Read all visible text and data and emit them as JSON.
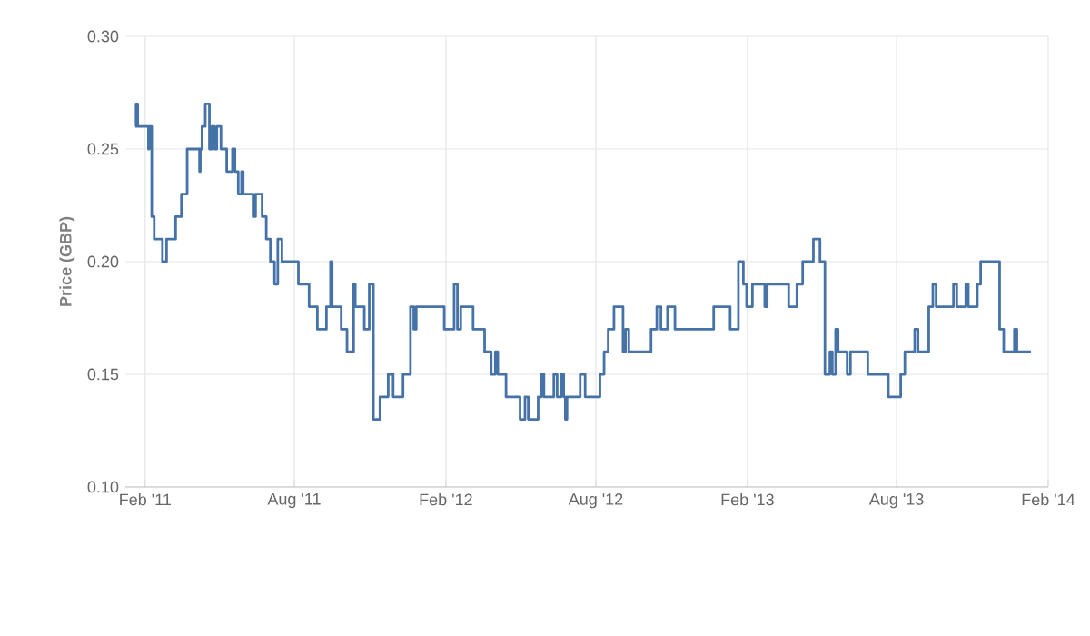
{
  "chart_data": {
    "type": "step",
    "ylabel": "Price (GBP)",
    "color": "#4572a7",
    "grid": true,
    "xlim": [
      "2011-01-08",
      "2014-02-01"
    ],
    "ylim": [
      0.1,
      0.3
    ],
    "xticks": [
      {
        "value": "2011-02-01",
        "label": "Feb '11"
      },
      {
        "value": "2011-08-01",
        "label": "Aug '11"
      },
      {
        "value": "2012-02-01",
        "label": "Feb '12"
      },
      {
        "value": "2012-08-01",
        "label": "Aug '12"
      },
      {
        "value": "2013-02-01",
        "label": "Feb '13"
      },
      {
        "value": "2013-08-01",
        "label": "Aug '13"
      },
      {
        "value": "2014-02-01",
        "label": "Feb '14"
      }
    ],
    "yticks": [
      {
        "value": 0.1,
        "label": "0.10"
      },
      {
        "value": 0.15,
        "label": "0.15"
      },
      {
        "value": 0.2,
        "label": "0.20"
      },
      {
        "value": 0.25,
        "label": "0.25"
      },
      {
        "value": 0.3,
        "label": "0.30"
      }
    ],
    "x": [
      "2011-01-20",
      "2011-01-21",
      "2011-01-23",
      "2011-02-05",
      "2011-02-06",
      "2011-02-09",
      "2011-02-12",
      "2011-02-22",
      "2011-02-27",
      "2011-03-10",
      "2011-03-17",
      "2011-03-24",
      "2011-04-08",
      "2011-04-09",
      "2011-04-11",
      "2011-04-15",
      "2011-04-20",
      "2011-04-23",
      "2011-04-26",
      "2011-04-29",
      "2011-05-04",
      "2011-05-11",
      "2011-05-18",
      "2011-05-21",
      "2011-05-25",
      "2011-05-29",
      "2011-05-31",
      "2011-06-12",
      "2011-06-15",
      "2011-06-23",
      "2011-06-28",
      "2011-07-03",
      "2011-07-08",
      "2011-07-12",
      "2011-07-17",
      "2011-08-06",
      "2011-08-19",
      "2011-08-29",
      "2011-09-09",
      "2011-09-14",
      "2011-09-16",
      "2011-09-27",
      "2011-10-04",
      "2011-10-12",
      "2011-10-14",
      "2011-10-25",
      "2011-10-31",
      "2011-11-05",
      "2011-11-13",
      "2011-11-23",
      "2011-11-29",
      "2011-12-11",
      "2011-12-20",
      "2011-12-24",
      "2011-12-27",
      "2012-01-30",
      "2012-02-11",
      "2012-02-15",
      "2012-02-19",
      "2012-03-05",
      "2012-03-19",
      "2012-03-27",
      "2012-04-01",
      "2012-04-04",
      "2012-04-14",
      "2012-05-01",
      "2012-05-07",
      "2012-05-11",
      "2012-05-23",
      "2012-05-27",
      "2012-05-30",
      "2012-06-11",
      "2012-06-15",
      "2012-06-20",
      "2012-06-23",
      "2012-06-25",
      "2012-06-27",
      "2012-07-13",
      "2012-07-19",
      "2012-08-06",
      "2012-08-11",
      "2012-08-16",
      "2012-08-23",
      "2012-09-03",
      "2012-09-06",
      "2012-09-10",
      "2012-10-07",
      "2012-10-14",
      "2012-10-19",
      "2012-10-27",
      "2012-11-05",
      "2012-12-22",
      "2013-01-11",
      "2013-01-21",
      "2013-01-27",
      "2013-01-31",
      "2013-02-07",
      "2013-02-22",
      "2013-02-25",
      "2013-03-23",
      "2013-04-02",
      "2013-04-09",
      "2013-04-22",
      "2013-04-30",
      "2013-05-06",
      "2013-05-12",
      "2013-05-15",
      "2013-05-19",
      "2013-05-22",
      "2013-06-02",
      "2013-06-06",
      "2013-06-27",
      "2013-07-22",
      "2013-08-06",
      "2013-08-11",
      "2013-08-23",
      "2013-08-27",
      "2013-09-09",
      "2013-09-14",
      "2013-09-18",
      "2013-10-09",
      "2013-10-13",
      "2013-10-24",
      "2013-10-27",
      "2013-11-07",
      "2013-11-11",
      "2013-12-04",
      "2013-12-09",
      "2013-12-22",
      "2013-12-25",
      "2014-01-11"
    ],
    "values": [
      0.26,
      0.27,
      0.26,
      0.25,
      0.26,
      0.22,
      0.21,
      0.2,
      0.21,
      0.22,
      0.23,
      0.25,
      0.24,
      0.25,
      0.26,
      0.27,
      0.25,
      0.26,
      0.25,
      0.26,
      0.25,
      0.24,
      0.25,
      0.24,
      0.23,
      0.24,
      0.23,
      0.22,
      0.23,
      0.22,
      0.21,
      0.2,
      0.19,
      0.21,
      0.2,
      0.19,
      0.18,
      0.17,
      0.18,
      0.2,
      0.18,
      0.17,
      0.16,
      0.19,
      0.18,
      0.17,
      0.19,
      0.13,
      0.14,
      0.15,
      0.14,
      0.15,
      0.18,
      0.17,
      0.18,
      0.17,
      0.19,
      0.17,
      0.18,
      0.17,
      0.16,
      0.15,
      0.16,
      0.15,
      0.14,
      0.13,
      0.14,
      0.13,
      0.14,
      0.15,
      0.14,
      0.15,
      0.14,
      0.15,
      0.14,
      0.13,
      0.14,
      0.15,
      0.14,
      0.15,
      0.16,
      0.17,
      0.18,
      0.16,
      0.17,
      0.16,
      0.17,
      0.18,
      0.17,
      0.18,
      0.17,
      0.18,
      0.17,
      0.2,
      0.19,
      0.18,
      0.19,
      0.18,
      0.19,
      0.18,
      0.19,
      0.2,
      0.21,
      0.2,
      0.15,
      0.16,
      0.15,
      0.17,
      0.16,
      0.15,
      0.16,
      0.15,
      0.14,
      0.15,
      0.16,
      0.17,
      0.16,
      0.18,
      0.19,
      0.18,
      0.19,
      0.18,
      0.19,
      0.18,
      0.19,
      0.2,
      0.17,
      0.16,
      0.17,
      0.16,
      0.16
    ]
  }
}
